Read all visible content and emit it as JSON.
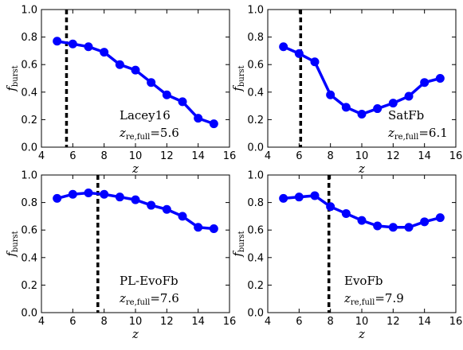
{
  "figure": {
    "xlabel_main": "z",
    "ylabel_main": "f",
    "ylabel_sub": "burst",
    "annotation_var": "z",
    "annotation_sub": "re,full"
  },
  "chart_data": [
    {
      "type": "line",
      "panel": "top-left",
      "label": "Lacey16",
      "z_re_full": "=5.6",
      "vline_x": 5.6,
      "x": [
        5,
        6,
        7,
        8,
        9,
        10,
        11,
        12,
        13,
        14,
        15
      ],
      "series": [
        {
          "values": [
            0.77,
            0.75,
            0.73,
            0.69,
            0.6,
            0.56,
            0.47,
            0.38,
            0.33,
            0.21,
            0.17
          ]
        }
      ],
      "xlim": [
        4,
        16
      ],
      "ylim": [
        0.0,
        1.0
      ],
      "xticks": [
        "4",
        "6",
        "8",
        "10",
        "12",
        "14",
        "16"
      ],
      "yticks": [
        "0.0",
        "0.2",
        "0.4",
        "0.6",
        "0.8",
        "1.0"
      ],
      "color": "#0000ff"
    },
    {
      "type": "line",
      "panel": "top-right",
      "label": "SatFb",
      "z_re_full": "=6.1",
      "vline_x": 6.1,
      "x": [
        5,
        6,
        7,
        8,
        9,
        10,
        11,
        12,
        13,
        14,
        15
      ],
      "series": [
        {
          "values": [
            0.73,
            0.68,
            0.62,
            0.38,
            0.29,
            0.24,
            0.28,
            0.32,
            0.37,
            0.47,
            0.5
          ]
        }
      ],
      "xlim": [
        4,
        16
      ],
      "ylim": [
        0.0,
        1.0
      ],
      "xticks": [
        "4",
        "6",
        "8",
        "10",
        "12",
        "14",
        "16"
      ],
      "yticks": [
        "0.0",
        "0.2",
        "0.4",
        "0.6",
        "0.8",
        "1.0"
      ],
      "color": "#0000ff"
    },
    {
      "type": "line",
      "panel": "bottom-left",
      "label": "PL-EvoFb",
      "z_re_full": "=7.6",
      "vline_x": 7.6,
      "x": [
        5,
        6,
        7,
        8,
        9,
        10,
        11,
        12,
        13,
        14,
        15
      ],
      "series": [
        {
          "values": [
            0.83,
            0.86,
            0.87,
            0.86,
            0.84,
            0.82,
            0.78,
            0.75,
            0.7,
            0.62,
            0.61
          ]
        }
      ],
      "xlim": [
        4,
        16
      ],
      "ylim": [
        0.0,
        1.0
      ],
      "xticks": [
        "4",
        "6",
        "8",
        "10",
        "12",
        "14",
        "16"
      ],
      "yticks": [
        "0.0",
        "0.2",
        "0.4",
        "0.6",
        "0.8",
        "1.0"
      ],
      "color": "#0000ff"
    },
    {
      "type": "line",
      "panel": "bottom-right",
      "label": "EvoFb",
      "z_re_full": "=7.9",
      "vline_x": 7.9,
      "x": [
        5,
        6,
        7,
        8,
        9,
        10,
        11,
        12,
        13,
        14,
        15
      ],
      "series": [
        {
          "values": [
            0.83,
            0.84,
            0.85,
            0.77,
            0.72,
            0.67,
            0.63,
            0.62,
            0.62,
            0.66,
            0.69
          ]
        }
      ],
      "xlim": [
        4,
        16
      ],
      "ylim": [
        0.0,
        1.0
      ],
      "xticks": [
        "4",
        "6",
        "8",
        "10",
        "12",
        "14",
        "16"
      ],
      "yticks": [
        "0.0",
        "0.2",
        "0.4",
        "0.6",
        "0.8",
        "1.0"
      ],
      "color": "#0000ff"
    }
  ]
}
